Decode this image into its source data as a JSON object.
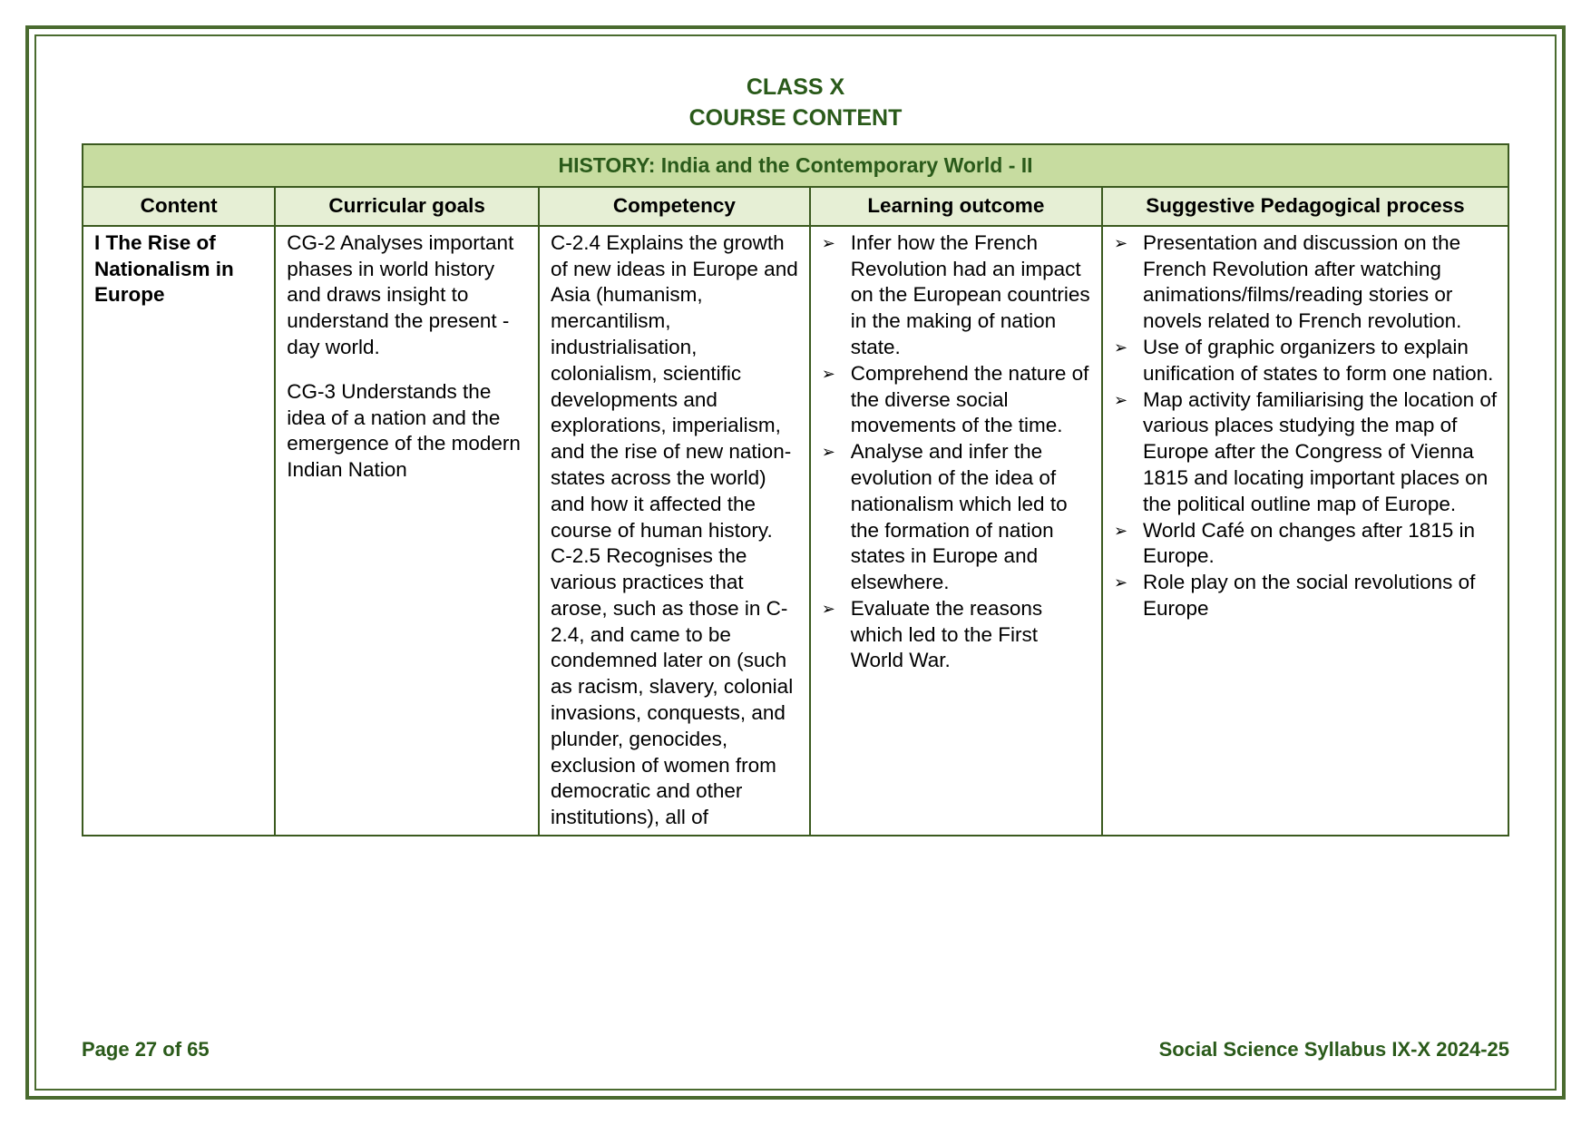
{
  "page": {
    "title_line_1": "CLASS X",
    "title_line_2": "COURSE CONTENT",
    "footer_left": "Page 27 of 65",
    "footer_right": "Social Science Syllabus IX-X 2024-25"
  },
  "colors": {
    "section_header_bg": "#c7dca0",
    "col_header_bg": "#e6efd5",
    "border": "#3b5a1f",
    "text_accent": "#2a5a1a"
  },
  "table": {
    "section_title": "HISTORY: India and the Contemporary World - II",
    "columns": {
      "c1": "Content",
      "c2": "Curricular goals",
      "c3": "Competency",
      "c4": "Learning outcome",
      "c5": "Suggestive Pedagogical process"
    },
    "row": {
      "content_title": "I The Rise of Nationalism in Europe",
      "goals_p1": "CG-2 Analyses important phases in world history and draws insight to understand the present - day world.",
      "goals_p2": "CG-3 Understands the idea of a nation and the emergence of the modern Indian Nation",
      "competency": "C-2.4 Explains the growth of new ideas in Europe and Asia (humanism, mercantilism, industrialisation, colonialism, scientific developments and explorations, imperialism, and the rise of new nation-states across the world) and how it affected the course of human history.\nC-2.5 Recognises the various practices that arose, such as those in C-2.4, and came to be condemned later on (such as racism, slavery, colonial invasions, conquests, and plunder, genocides, exclusion of women from democratic and other institutions), all of",
      "learning_outcomes": [
        "Infer how the French Revolution had an impact on the European countries in the making of nation state.",
        "Comprehend the nature of the diverse social movements of the time.",
        "Analyse and infer the evolution of the idea of nationalism which led to the formation of nation states in Europe and elsewhere.",
        "Evaluate the reasons which led to the First World War."
      ],
      "pedagogical": [
        "Presentation and discussion on the French Revolution after watching animations/films/reading stories or novels related to French revolution.",
        "Use of graphic organizers to explain unification of states to form one nation.",
        "Map activity familiarising the location of various places studying the map of Europe after the Congress of Vienna 1815 and locating important places on the political outline map of Europe.",
        "World Café on changes after 1815 in Europe.",
        "Role play on the social revolutions of Europe"
      ]
    }
  }
}
